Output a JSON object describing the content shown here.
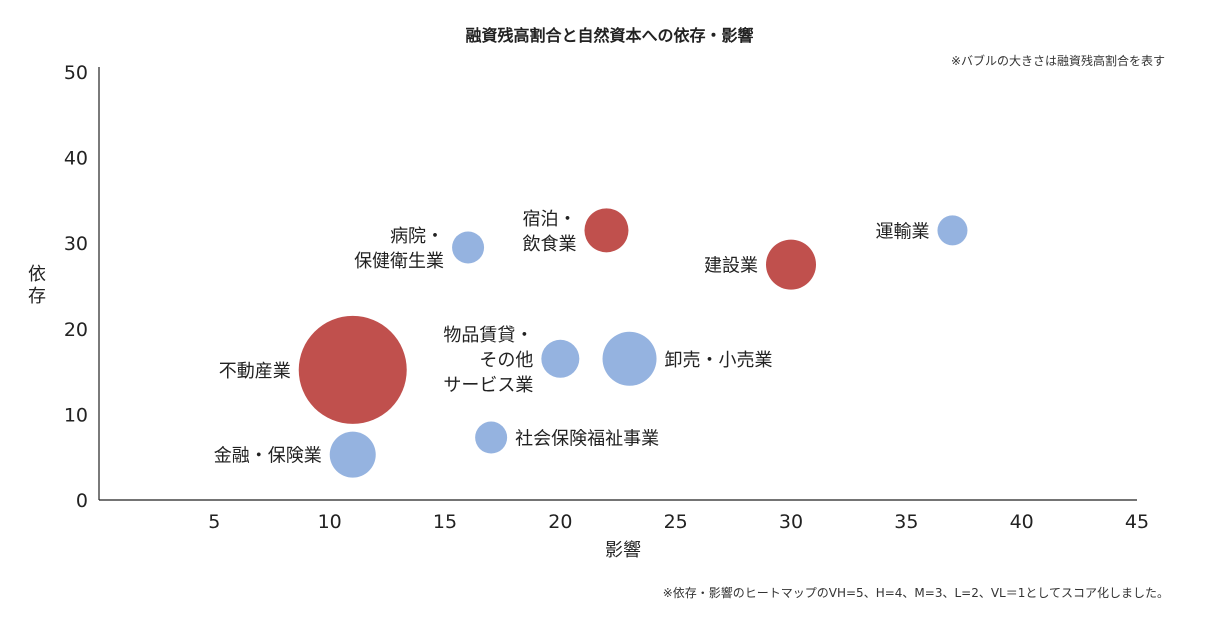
{
  "chart_data": {
    "type": "bubble",
    "title": "融資残高割合と自然資本への依存・影響",
    "size_note": "※バブルの大きさは融資残高割合を表す",
    "footnote": "※依存・影響のヒートマップのVH=5、H=4、M=3、L=2、VL＝1としてスコア化しました。",
    "xlabel": "影響",
    "ylabel": "依存",
    "xlim": [
      0,
      45
    ],
    "ylim": [
      0,
      50
    ],
    "xticks": [
      5,
      10,
      15,
      20,
      25,
      30,
      35,
      40,
      45
    ],
    "yticks": [
      0,
      10,
      20,
      30,
      40,
      50
    ],
    "colors": {
      "red": "#c0504d",
      "blue": "#95b3e0"
    },
    "points": [
      {
        "name": "不動産業",
        "lines": [
          "不動産業"
        ],
        "x": 11,
        "y": 15.2,
        "size": 54,
        "color": "red",
        "label_side": "left"
      },
      {
        "name": "金融・保険業",
        "lines": [
          "金融・保険業"
        ],
        "x": 11,
        "y": 5.3,
        "size": 23,
        "color": "blue",
        "label_side": "left"
      },
      {
        "name": "病院・保健衛生業",
        "lines": [
          "病院・",
          "保健衛生業"
        ],
        "x": 16,
        "y": 29.5,
        "size": 16,
        "color": "blue",
        "label_side": "left"
      },
      {
        "name": "宿泊・飲食業",
        "lines": [
          "宿泊・",
          "飲食業"
        ],
        "x": 22,
        "y": 31.5,
        "size": 22,
        "color": "red",
        "label_side": "left"
      },
      {
        "name": "物品賃貸・その他サービス業",
        "lines": [
          "物品賃貸・",
          "その他",
          "サービス業"
        ],
        "x": 20,
        "y": 16.5,
        "size": 19,
        "color": "blue",
        "label_side": "left"
      },
      {
        "name": "卸売・小売業",
        "lines": [
          "卸売・小売業"
        ],
        "x": 23,
        "y": 16.5,
        "size": 27,
        "color": "blue",
        "label_side": "right"
      },
      {
        "name": "社会保険福祉事業",
        "lines": [
          "社会保険福祉事業"
        ],
        "x": 17,
        "y": 7.3,
        "size": 16,
        "color": "blue",
        "label_side": "right"
      },
      {
        "name": "建設業",
        "lines": [
          "建設業"
        ],
        "x": 30,
        "y": 27.5,
        "size": 25,
        "color": "red",
        "label_side": "left"
      },
      {
        "name": "運輸業",
        "lines": [
          "運輸業"
        ],
        "x": 37,
        "y": 31.5,
        "size": 15,
        "color": "blue",
        "label_side": "left"
      }
    ]
  }
}
